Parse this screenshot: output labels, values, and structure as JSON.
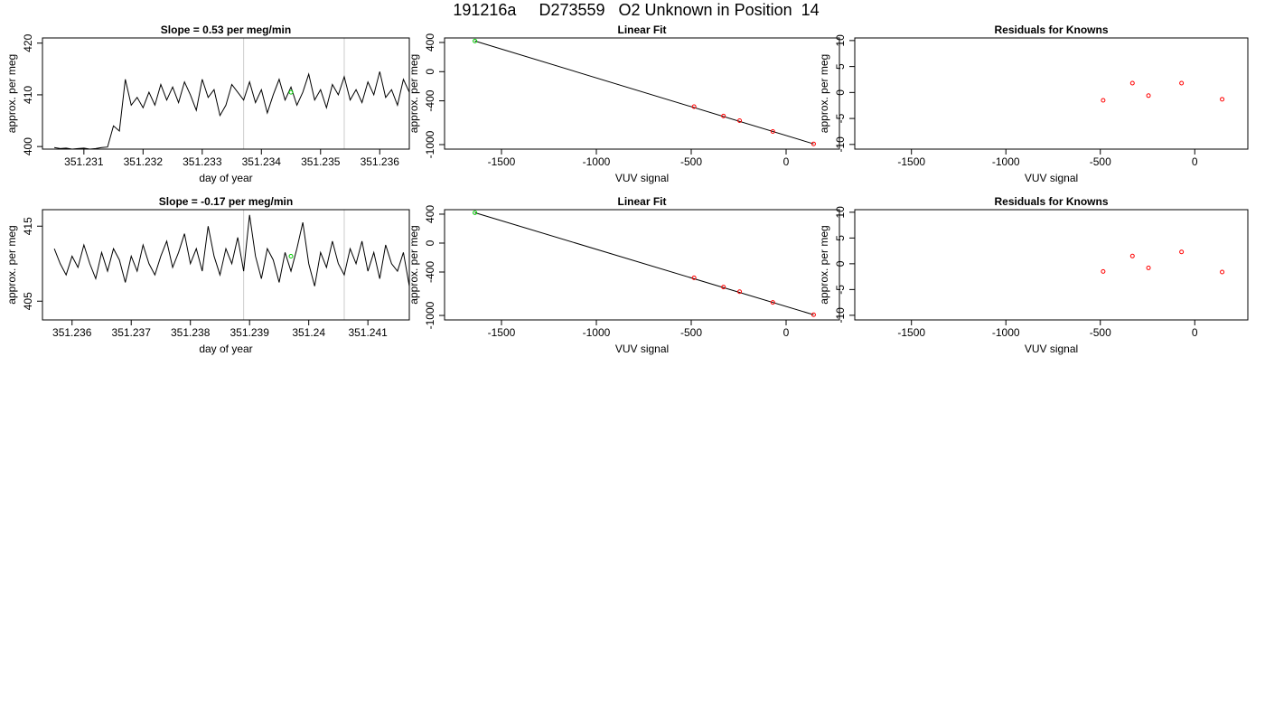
{
  "title": "191216a     D273559   O2 Unknown in Position  14",
  "chart_data": [
    {
      "type": "line",
      "title": "Slope =  0.53  per meg/min",
      "x_label": "day of year",
      "y_label": "approx. per meg",
      "x": [
        351.2305,
        351.2306,
        351.2307,
        351.2308,
        351.2309,
        351.231,
        351.2311,
        351.2312,
        351.2313,
        351.2314,
        351.2315,
        351.2316,
        351.2317,
        351.2318,
        351.2319,
        351.232,
        351.2321,
        351.2322,
        351.2323,
        351.2324,
        351.2325,
        351.2326,
        351.2327,
        351.2328,
        351.2329,
        351.233,
        351.2331,
        351.2332,
        351.2333,
        351.2334,
        351.2335,
        351.2336,
        351.2337,
        351.2338,
        351.2339,
        351.234,
        351.2341,
        351.2342,
        351.2343,
        351.2344,
        351.2345,
        351.2346,
        351.2347,
        351.2348,
        351.2349,
        351.235,
        351.2351,
        351.2352,
        351.2353,
        351.2354,
        351.2355,
        351.2356,
        351.2357,
        351.2358,
        351.2359,
        351.236,
        351.2361,
        351.2362,
        351.2363,
        351.2364,
        351.2365
      ],
      "values": [
        399.8,
        399.6,
        399.7,
        399.5,
        399.6,
        399.7,
        399.5,
        399.6,
        399.8,
        399.9,
        404,
        403,
        413,
        408,
        409.5,
        407.5,
        410.5,
        408,
        412,
        409,
        411.5,
        408.5,
        412.5,
        410,
        407,
        413,
        409.5,
        411,
        406,
        408,
        412,
        410.5,
        409,
        412.5,
        408.5,
        411,
        406.5,
        410,
        413,
        409,
        411.5,
        408,
        410.5,
        414,
        409,
        411,
        407.5,
        412,
        410,
        413.5,
        409,
        411,
        408.5,
        412.5,
        410,
        414.5,
        409.5,
        411,
        408,
        413,
        410.5
      ],
      "color": "#000000",
      "vlines": [
        351.2337,
        351.2354
      ],
      "vline_color": "#cccccc",
      "highlight": {
        "x": 351.2345,
        "y": 410.5,
        "color": "#00cc00"
      },
      "xlim": [
        351.2303,
        351.2365
      ],
      "xticks": [
        351.231,
        351.232,
        351.233,
        351.234,
        351.235,
        351.236
      ],
      "ylim": [
        399.5,
        421
      ],
      "yticks": [
        400,
        410,
        420
      ]
    },
    {
      "type": "scatter",
      "title": "Linear Fit",
      "x_label": "VUV signal",
      "y_label": "approx. per meg",
      "x": [
        -1640,
        -485,
        -330,
        -245,
        -70,
        145
      ],
      "values": [
        420,
        -480,
        -608,
        -672,
        -820,
        -990
      ],
      "point_colors": [
        "#00cc00",
        "#ff0000",
        "#ff0000",
        "#ff0000",
        "#ff0000",
        "#ff0000"
      ],
      "fit_line": {
        "x": [
          -1640,
          145
        ],
        "y": [
          420,
          -990
        ],
        "color": "#000000"
      },
      "xlim": [
        -1800,
        281
      ],
      "xticks": [
        -1500,
        -1000,
        -500,
        0
      ],
      "ylim": [
        -1062,
        462
      ],
      "yticks": [
        400,
        0,
        -400,
        -1000
      ]
    },
    {
      "type": "scatter",
      "title": "Residuals for Knowns",
      "x_label": "VUV signal",
      "y_label": "approx. per meg",
      "x": [
        -485,
        -330,
        -245,
        -70,
        145
      ],
      "values": [
        -1.5,
        1.8,
        -0.6,
        1.8,
        -1.3
      ],
      "point_colors": [
        "#ff0000",
        "#ff0000",
        "#ff0000",
        "#ff0000",
        "#ff0000"
      ],
      "xlim": [
        -1800,
        281
      ],
      "xticks": [
        -1500,
        -1000,
        -500,
        0
      ],
      "ylim": [
        -10.9,
        10.5
      ],
      "yticks": [
        10,
        5,
        0,
        -5,
        -10
      ]
    },
    {
      "type": "line",
      "title": "Slope =  -0.17  per meg/min",
      "x_label": "day of year",
      "y_label": "approx. per meg",
      "x": [
        351.2357,
        351.2358,
        351.2359,
        351.236,
        351.2361,
        351.2362,
        351.2363,
        351.2364,
        351.2365,
        351.2366,
        351.2367,
        351.2368,
        351.2369,
        351.237,
        351.2371,
        351.2372,
        351.2373,
        351.2374,
        351.2375,
        351.2376,
        351.2377,
        351.2378,
        351.2379,
        351.238,
        351.2381,
        351.2382,
        351.2383,
        351.2384,
        351.2385,
        351.2386,
        351.2387,
        351.2388,
        351.2389,
        351.239,
        351.2391,
        351.2392,
        351.2393,
        351.2394,
        351.2395,
        351.2396,
        351.2397,
        351.2398,
        351.2399,
        351.24,
        351.2401,
        351.2402,
        351.2403,
        351.2404,
        351.2405,
        351.2406,
        351.2407,
        351.2408,
        351.2409,
        351.241,
        351.2411,
        351.2412,
        351.2413,
        351.2414,
        351.2415,
        351.2416,
        351.2417
      ],
      "values": [
        412,
        410,
        408.5,
        411,
        409.5,
        412.5,
        410,
        408,
        411.5,
        409,
        412,
        410.5,
        407.5,
        411,
        409,
        412.5,
        410,
        408.5,
        411,
        413,
        409.5,
        411.5,
        414,
        410,
        412,
        409,
        415,
        411,
        408.5,
        412,
        410,
        413.5,
        409,
        416.5,
        411,
        408,
        412,
        410.5,
        407.5,
        411.5,
        409,
        412,
        415.5,
        410,
        407,
        411.5,
        409.5,
        413,
        410,
        408.5,
        412,
        410,
        413,
        409,
        411.5,
        408,
        412.5,
        410,
        409,
        411.5,
        407
      ],
      "color": "#000000",
      "vlines": [
        351.2389,
        351.2406
      ],
      "vline_color": "#cccccc",
      "highlight": {
        "x": 351.2397,
        "y": 411,
        "color": "#00cc00"
      },
      "xlim": [
        351.2355,
        351.2417
      ],
      "xticks": [
        351.236,
        351.237,
        351.238,
        351.239,
        351.24,
        351.241
      ],
      "ylim": [
        402.5,
        417.2
      ],
      "yticks": [
        405,
        415
      ]
    },
    {
      "type": "scatter",
      "title": "Linear Fit",
      "x_label": "VUV signal",
      "y_label": "approx. per meg",
      "x": [
        -1640,
        -485,
        -330,
        -245,
        -70,
        145
      ],
      "values": [
        420,
        -480,
        -608,
        -672,
        -820,
        -990
      ],
      "point_colors": [
        "#00cc00",
        "#ff0000",
        "#ff0000",
        "#ff0000",
        "#ff0000",
        "#ff0000"
      ],
      "fit_line": {
        "x": [
          -1640,
          145
        ],
        "y": [
          420,
          -990
        ],
        "color": "#000000"
      },
      "xlim": [
        -1800,
        281
      ],
      "xticks": [
        -1500,
        -1000,
        -500,
        0
      ],
      "ylim": [
        -1062,
        462
      ],
      "yticks": [
        400,
        0,
        -400,
        -1000
      ]
    },
    {
      "type": "scatter",
      "title": "Residuals for Knowns",
      "x_label": "VUV signal",
      "y_label": "approx. per meg",
      "x": [
        -485,
        -330,
        -245,
        -70,
        145
      ],
      "values": [
        -1.5,
        1.5,
        -0.8,
        2.3,
        -1.6
      ],
      "point_colors": [
        "#ff0000",
        "#ff0000",
        "#ff0000",
        "#ff0000",
        "#ff0000"
      ],
      "xlim": [
        -1800,
        281
      ],
      "xticks": [
        -1500,
        -1000,
        -500,
        0
      ],
      "ylim": [
        -10.9,
        10.5
      ],
      "yticks": [
        10,
        5,
        0,
        -5,
        -10
      ]
    }
  ]
}
